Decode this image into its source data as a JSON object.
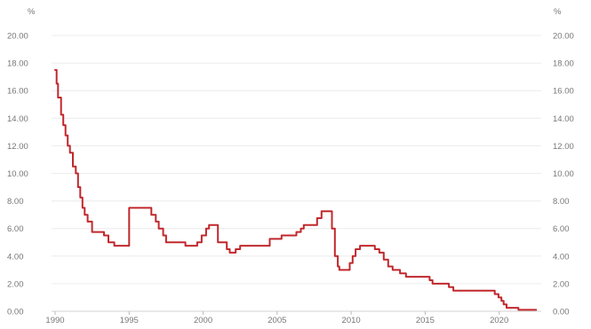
{
  "chart_data": {
    "type": "line",
    "title": "",
    "xlabel": "",
    "ylabel": "",
    "unit_left": "%",
    "unit_right": "%",
    "xlim": [
      1990,
      2022.6
    ],
    "ylim": [
      0,
      20
    ],
    "x_ticks": [
      {
        "value": 1990,
        "label": "1990"
      },
      {
        "value": 1995,
        "label": "1995"
      },
      {
        "value": 2000,
        "label": "2000"
      },
      {
        "value": 2005,
        "label": "2005"
      },
      {
        "value": 2010,
        "label": "2010"
      },
      {
        "value": 2015,
        "label": "2015"
      },
      {
        "value": 2020,
        "label": "2020"
      }
    ],
    "y_ticks": [
      {
        "value": 0,
        "label": "0.00"
      },
      {
        "value": 2,
        "label": "2.00"
      },
      {
        "value": 4,
        "label": "4.00"
      },
      {
        "value": 6,
        "label": "6.00"
      },
      {
        "value": 8,
        "label": "8.00"
      },
      {
        "value": 10,
        "label": "10.00"
      },
      {
        "value": 12,
        "label": "12.00"
      },
      {
        "value": 14,
        "label": "14.00"
      },
      {
        "value": 16,
        "label": "16.00"
      },
      {
        "value": 18,
        "label": "18.00"
      },
      {
        "value": 20,
        "label": "20.00"
      }
    ],
    "grid": true,
    "line_color": "#c0282d",
    "step": true,
    "series": [
      {
        "x": [
          1990.0,
          1990.1,
          1990.2,
          1990.4,
          1990.55,
          1990.7,
          1990.85,
          1991.0,
          1991.2,
          1991.4,
          1991.55,
          1991.7,
          1991.85,
          1992.0,
          1992.2,
          1992.5,
          1992.9,
          1993.3,
          1993.6,
          1994.0,
          1994.3,
          1994.55,
          1994.8,
          1995.0,
          1996.2,
          1996.5,
          1996.8,
          1997.0,
          1997.3,
          1997.5,
          1998.0,
          1998.5,
          1998.8,
          1999.3,
          1999.6,
          1999.9,
          2000.2,
          2000.4,
          2000.6,
          2001.0,
          2001.4,
          2001.6,
          2001.8,
          2002.2,
          2002.5,
          2003.8,
          2004.5,
          2005.3,
          2006.3,
          2006.6,
          2006.8,
          2007.2,
          2007.7,
          2008.0,
          2008.2,
          2008.7,
          2008.9,
          2009.1,
          2009.2,
          2009.4,
          2009.6,
          2009.9,
          2010.1,
          2010.3,
          2010.6,
          2011.1,
          2011.6,
          2011.9,
          2012.2,
          2012.5,
          2012.8,
          2013.0,
          2013.3,
          2013.7,
          2014.0,
          2014.4,
          2015.3,
          2015.5,
          2016.3,
          2016.6,
          2016.9,
          2019.5,
          2019.7,
          2019.95,
          2020.15,
          2020.3,
          2020.5,
          2020.8,
          2021.3,
          2021.6,
          2022.5
        ],
        "y": [
          17.5,
          16.5,
          15.5,
          14.25,
          13.5,
          12.75,
          12.0,
          11.5,
          10.5,
          10.0,
          9.0,
          8.25,
          7.5,
          7.0,
          6.5,
          5.75,
          5.75,
          5.5,
          5.0,
          4.75,
          4.75,
          4.75,
          4.75,
          7.5,
          7.5,
          7.0,
          6.5,
          6.0,
          5.5,
          5.0,
          5.0,
          5.0,
          4.75,
          4.75,
          5.0,
          5.5,
          6.0,
          6.25,
          6.25,
          5.0,
          5.0,
          4.5,
          4.25,
          4.5,
          4.75,
          4.75,
          5.25,
          5.5,
          5.75,
          6.0,
          6.25,
          6.25,
          6.75,
          7.25,
          7.25,
          6.0,
          4.0,
          3.25,
          3.0,
          3.0,
          3.0,
          3.5,
          4.0,
          4.5,
          4.75,
          4.75,
          4.5,
          4.25,
          3.75,
          3.25,
          3.0,
          3.0,
          2.75,
          2.5,
          2.5,
          2.5,
          2.25,
          2.0,
          2.0,
          1.75,
          1.5,
          1.5,
          1.25,
          1.0,
          0.75,
          0.5,
          0.25,
          0.25,
          0.1,
          0.1,
          0.1
        ]
      }
    ]
  }
}
